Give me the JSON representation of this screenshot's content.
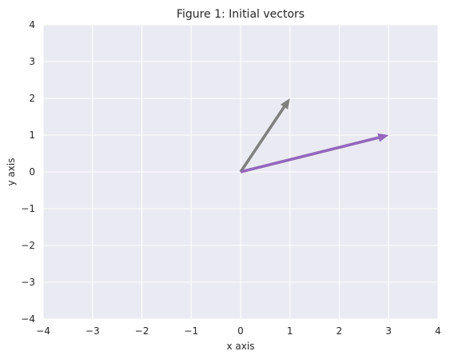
{
  "chart_data": {
    "type": "vector",
    "title": "Figure 1: Initial vectors",
    "xlabel": "x axis",
    "ylabel": "y axis",
    "xlim": [
      -4,
      4
    ],
    "ylim": [
      -4,
      4
    ],
    "xticks": [
      -4,
      -3,
      -2,
      -1,
      0,
      1,
      2,
      3,
      4
    ],
    "yticks": [
      -4,
      -3,
      -2,
      -1,
      0,
      1,
      2,
      3,
      4
    ],
    "xtick_labels": [
      "−4",
      "−3",
      "−2",
      "−1",
      "0",
      "1",
      "2",
      "3",
      "4"
    ],
    "ytick_labels": [
      "−4",
      "−3",
      "−2",
      "−1",
      "0",
      "1",
      "2",
      "3",
      "4"
    ],
    "grid": true,
    "background": "#eaeaf2",
    "grid_color": "#ffffff",
    "vectors": [
      {
        "origin": [
          0,
          0
        ],
        "x": 1,
        "y": 2,
        "color": "#808080"
      },
      {
        "origin": [
          0,
          0
        ],
        "x": 3,
        "y": 1,
        "color": "#9467bd"
      }
    ]
  }
}
